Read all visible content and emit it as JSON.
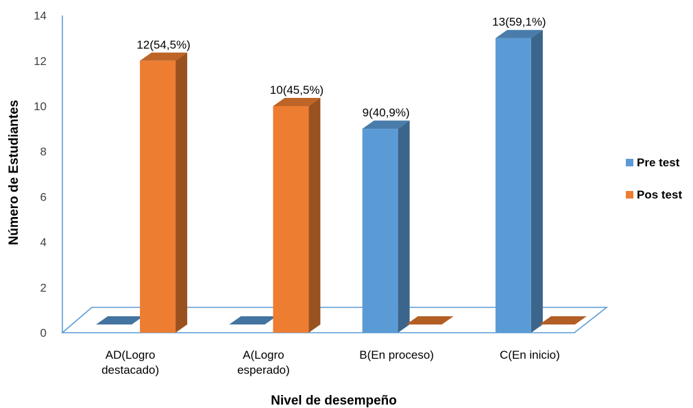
{
  "chart_data": {
    "type": "bar",
    "three_d": true,
    "categories": [
      [
        "AD(Logro",
        "destacado)"
      ],
      [
        "A(Logro",
        "esperado)"
      ],
      [
        "B(En proceso)"
      ],
      [
        "C(En inicio)"
      ]
    ],
    "series": [
      {
        "name": "Pre test",
        "values": [
          0,
          0,
          9,
          13
        ],
        "color": "#5B9BD5",
        "labels": [
          "",
          "",
          "9(40,9%)",
          "13(59,1%)"
        ]
      },
      {
        "name": "Pos test",
        "values": [
          12,
          10,
          0,
          0
        ],
        "color": "#ED7D31",
        "labels": [
          "12(54,5%)",
          "10(45,5%)",
          "",
          ""
        ]
      }
    ],
    "xlabel": "Nivel de desempeño",
    "ylabel": "Número de Estudiantes",
    "ylim": [
      0,
      14
    ],
    "yticks": [
      "0",
      "2",
      "4",
      "6",
      "8",
      "10",
      "12",
      "14"
    ],
    "grid": false,
    "legend_position": "right",
    "wall_color": "#5B9BD5"
  }
}
